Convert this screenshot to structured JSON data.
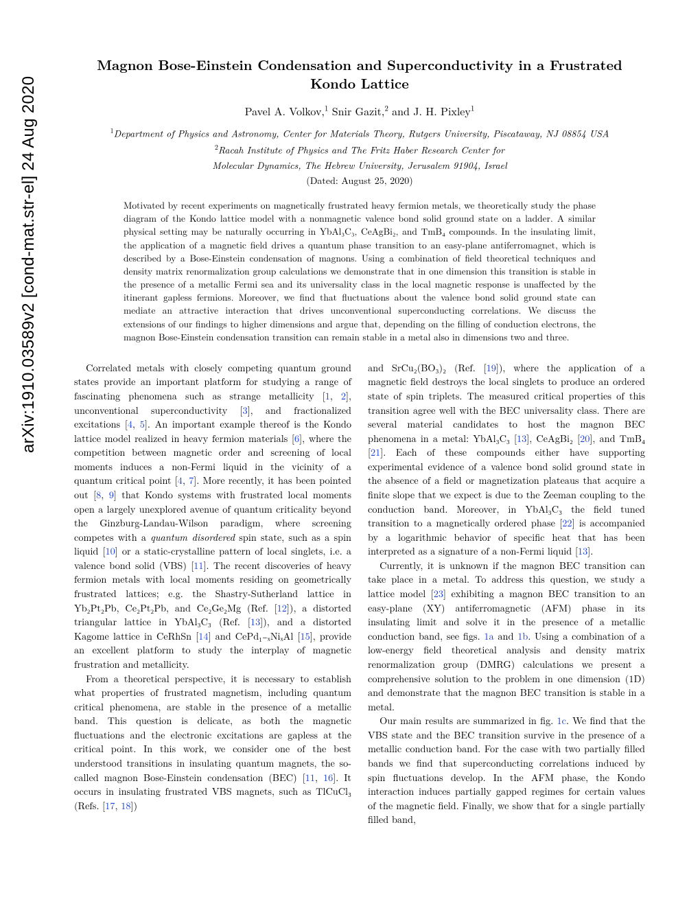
{
  "arxiv_stamp": "arXiv:1910.03589v2  [cond-mat.str-el]  24 Aug 2020",
  "title": "Magnon Bose-Einstein Condensation and Superconductivity in a Frustrated Kondo Lattice",
  "authors_html": "Pavel A. Volkov,<sup>1</sup> Snir Gazit,<sup>2</sup> and J. H. Pixley<sup>1</sup>",
  "affil1_html": "<sup>1</sup>Department of Physics and Astronomy, Center for Materials Theory, Rutgers University, Piscataway, NJ 08854 USA",
  "affil2_html": "<sup>2</sup>Racah Institute of Physics and The Fritz Haber Research Center for",
  "affil3": "Molecular Dynamics, The Hebrew University, Jerusalem 91904, Israel",
  "dated": "(Dated: August 25, 2020)",
  "abstract": "Motivated by recent experiments on magnetically frustrated heavy fermion metals, we theoretically study the phase diagram of the Kondo lattice model with a nonmagnetic valence bond solid ground state on a ladder. A similar physical setting may be naturally occurring in YbAl₃C₃, CeAgBi₂, and TmB₄ compounds. In the insulating limit, the application of a magnetic field drives a quantum phase transition to an easy-plane antiferromagnet, which is described by a Bose-Einstein condensation of magnons. Using a combination of field theoretical techniques and density matrix renormalization group calculations we demonstrate that in one dimension this transition is stable in the presence of a metallic Fermi sea and its universality class in the local magnetic response is unaffected by the itinerant gapless fermions. Moreover, we find that fluctuations about the valence bond solid ground state can mediate an attractive interaction that drives unconventional superconducting correlations. We discuss the extensions of our findings to higher dimensions and argue that, depending on the filling of conduction electrons, the magnon Bose-Einstein condensation transition can remain stable in a metal also in dimensions two and three.",
  "colors": {
    "link": "#1a3fd6",
    "text": "#000000",
    "bg": "#ffffff"
  },
  "left_col": {
    "p1_a": "Correlated metals with closely competing quantum ground states provide an important platform for studying a range of fascinating phenomena such as strange metallicity [",
    "r1": "1",
    "c1": ", ",
    "r2": "2",
    "p1_b": "], unconventional superconductivity [",
    "r3": "3",
    "p1_c": "], and fractionalized excitations [",
    "r4": "4",
    "c2": ", ",
    "r5": "5",
    "p1_d": "]. An important example thereof is the Kondo lattice model realized in heavy fermion materials [",
    "r6": "6",
    "p1_e": "], where the competition between magnetic order and screening of local moments induces a non-Fermi liquid in the vicinity of a quantum critical point [",
    "r7": "4",
    "c3": ", ",
    "r8": "7",
    "p1_f": "]. More recently, it has been pointed out [",
    "r9": "8",
    "c4": ", ",
    "r10": "9",
    "p1_g": "] that Kondo systems with frustrated local moments open a largely unexplored avenue of quantum criticality beyond the Ginzburg-Landau-Wilson paradigm, where screening competes with a ",
    "em1": "quantum disordered",
    "p1_h": " spin state, such as a spin liquid [",
    "r11": "10",
    "p1_i": "] or a static-crystalline pattern of local singlets, i.e. a valence bond solid (VBS) [",
    "r12": "11",
    "p1_j": "]. The recent discoveries of heavy fermion metals with local moments residing on geometrically frustrated lattices; e.g. the Shastry-Sutherland lattice in Yb₂Pt₂Pb, Ce₂Pt₂Pb, and Ce₂Ge₂Mg (Ref. [",
    "r13": "12",
    "p1_k": "]), a distorted triangular lattice in YbAl₃C₃ (Ref. [",
    "r14": "13",
    "p1_l": "]), and a distorted Kagome lattice in CeRhSn [",
    "r15": "14",
    "p1_m": "] and CePd₁₋ₓNiₓAl [",
    "r16": "15",
    "p1_n": "], provide an excellent platform to study the interplay of magnetic frustration and metallicity.",
    "p2_a": "From a theoretical perspective, it is necessary to establish what properties of frustrated magnetism, including quantum critical phenomena, are stable in the presence of a metallic band. This question is delicate, as both the magnetic fluctuations and the electronic excitations are gapless at the critical point. In this work, we consider one of the best understood transitions in insulating quantum magnets, the so-called magnon Bose-Einstein condensation (BEC) [",
    "r17": "11",
    "c5": ", ",
    "r18": "16",
    "p2_b": "]. It occurs in insulating frustrated VBS magnets, such as TlCuCl₃ (Refs. [",
    "r19": "17",
    "c6": ", ",
    "r20": "18",
    "p2_c": "])"
  },
  "right_col": {
    "p1_a": "and SrCu₂(BO₃)₂ (Ref. [",
    "r1": "19",
    "p1_b": "]), where the application of a magnetic field destroys the local singlets to produce an ordered state of spin triplets. The measured critical properties of this transition agree well with the BEC universality class. There are several material candidates to host the magnon BEC phenomena in a metal: YbAl₃C₃ [",
    "r2": "13",
    "p1_c": "], CeAgBi₂ [",
    "r3": "20",
    "p1_d": "], and TmB₄ [",
    "r4": "21",
    "p1_e": "]. Each of these compounds either have supporting experimental evidence of a valence bond solid ground state in the absence of a field or magnetization plateaus that acquire a finite slope that we expect is due to the Zeeman coupling to the conduction band. Moreover, in YbAl₃C₃ the field tuned transition to a magnetically ordered phase [",
    "r5": "22",
    "p1_f": "] is accompanied by a logarithmic behavior of specific heat that has been interpreted as a signature of a non-Fermi liquid [",
    "r6": "13",
    "p1_g": "].",
    "p2_a": "Currently, it is unknown if the magnon BEC transition can take place in a metal. To address this question, we study a lattice model [",
    "r7": "23",
    "p2_b": "] exhibiting a magnon BEC transition to an easy-plane (XY) antiferromagnetic (AFM) phase in its insulating limit and solve it in the presence of a metallic conduction band, see figs. ",
    "f1": "1a",
    "p2_c": " and ",
    "f2": "1b",
    "p2_d": ". Using a combination of a low-energy field theoretical analysis and density matrix renormalization group (DMRG) calculations we present a comprehensive solution to the problem in one dimension (1D) and demonstrate that the magnon BEC transition is stable in a metal.",
    "p3_a": "Our main results are summarized in fig. ",
    "f3": "1c",
    "p3_b": ". We find that the VBS state and the BEC transition survive in the presence of a metallic conduction band. For the case with two partially filled bands we find that superconducting correlations induced by spin fluctuations develop. In the AFM phase, the Kondo interaction induces partially gapped regimes for certain values of the magnetic field. Finally, we show that for a single partially filled band,"
  }
}
